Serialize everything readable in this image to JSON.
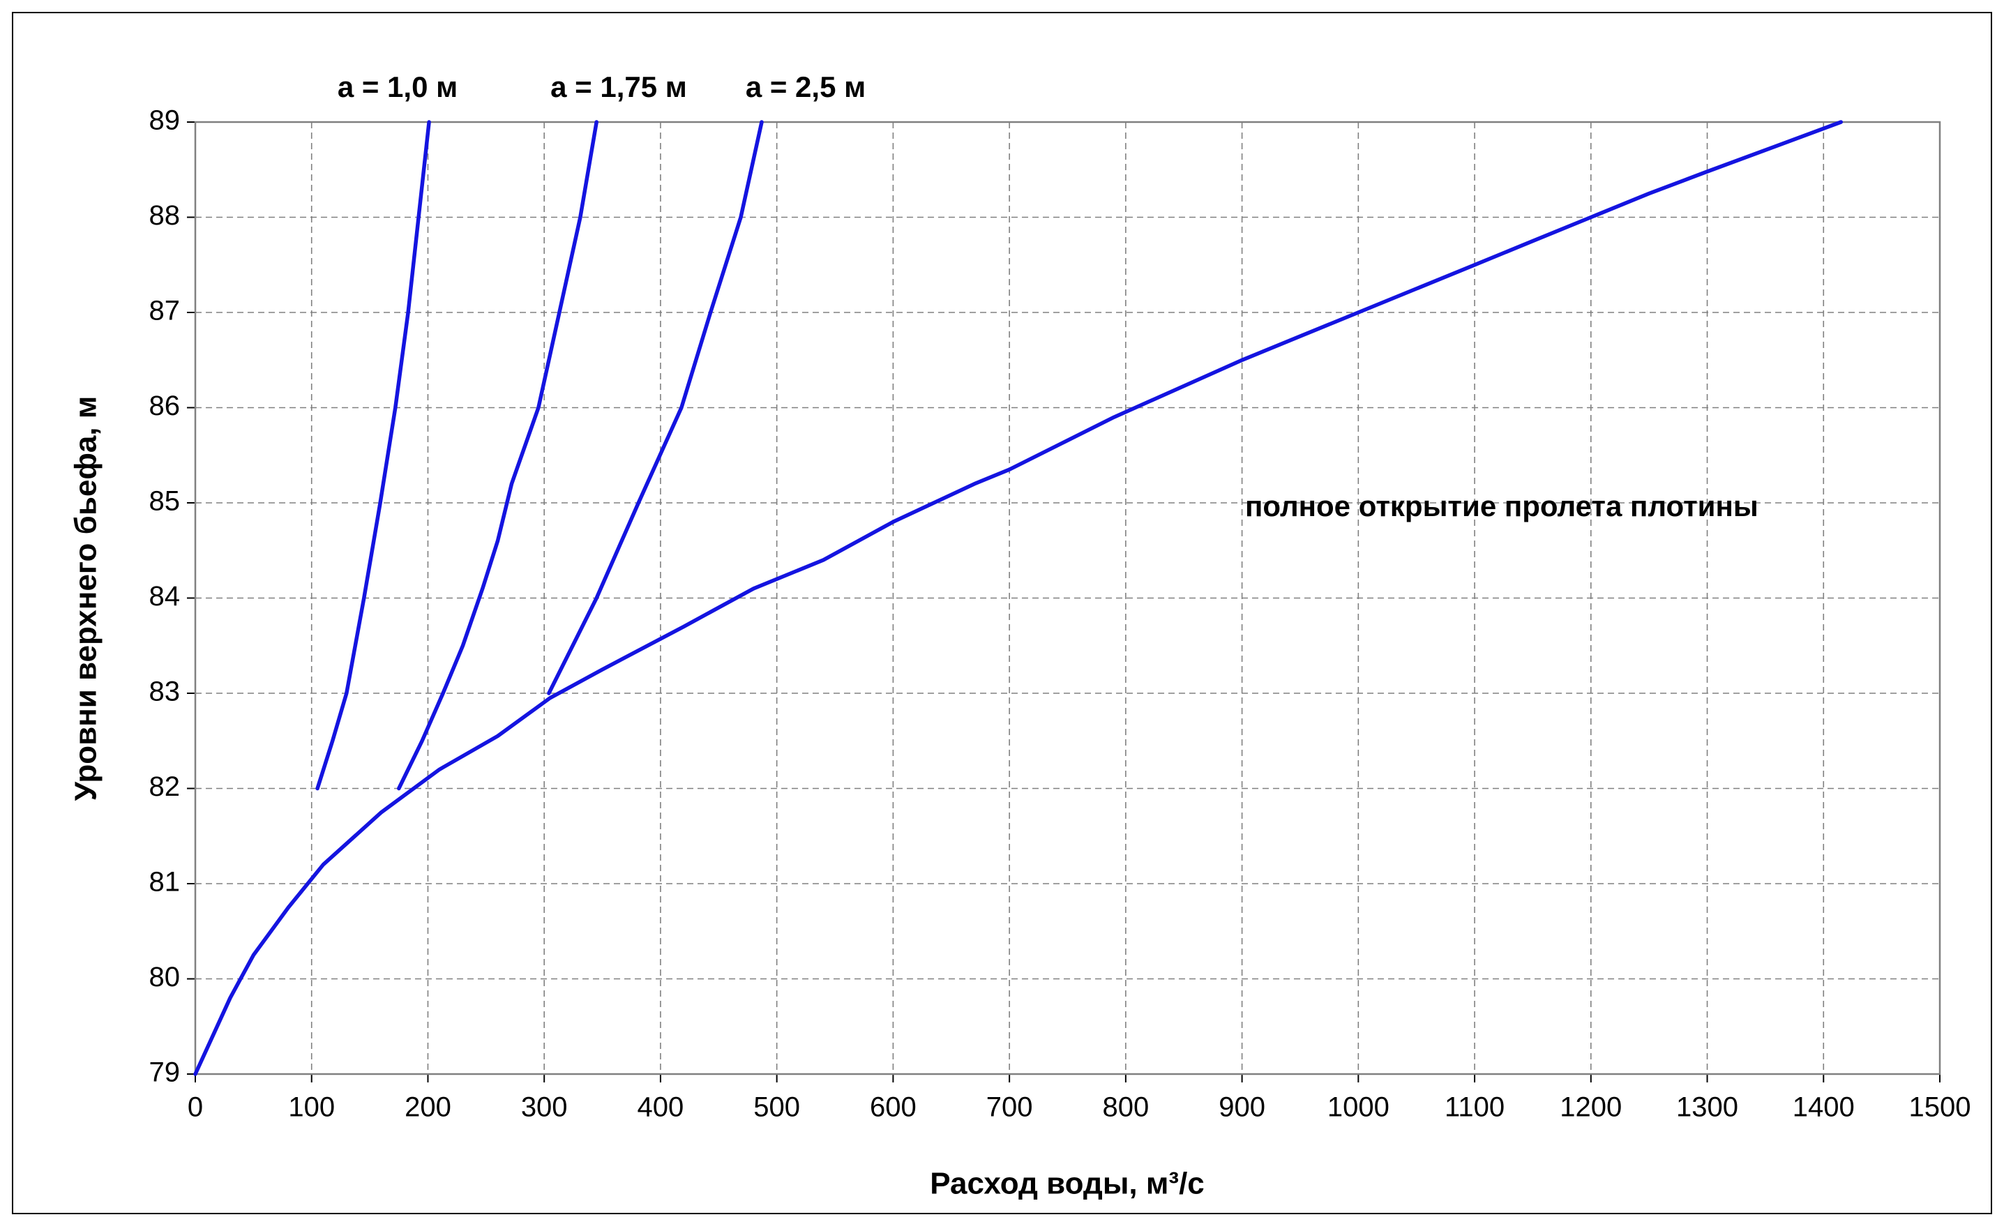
{
  "chart_data": {
    "type": "line",
    "xlabel": "Расход воды, м³/с",
    "ylabel": "Уровни верхнего бьефа, м",
    "xlim": [
      0,
      1500
    ],
    "ylim": [
      79,
      89
    ],
    "xticks": [
      0,
      100,
      200,
      300,
      400,
      500,
      600,
      700,
      800,
      900,
      1000,
      1100,
      1200,
      1300,
      1400,
      1500
    ],
    "yticks": [
      79,
      80,
      81,
      82,
      83,
      84,
      85,
      86,
      87,
      88,
      89
    ],
    "grid": true,
    "series": [
      {
        "name": "полное открытие пролета плотины",
        "color": "#1414e0",
        "x": [
          0,
          30,
          50,
          80,
          110,
          160,
          210,
          260,
          305,
          350,
          420,
          480,
          540,
          600,
          670,
          700,
          790,
          900,
          950,
          1000,
          1100,
          1150,
          1200,
          1250,
          1300,
          1415
        ],
        "values": [
          79,
          79.8,
          80.25,
          80.75,
          81.2,
          81.75,
          82.2,
          82.55,
          82.95,
          83.25,
          83.7,
          84.1,
          84.4,
          84.8,
          85.2,
          85.35,
          85.9,
          86.5,
          86.75,
          87,
          87.5,
          87.75,
          88,
          88.25,
          88.48,
          89
        ]
      },
      {
        "name": "a = 1,0 м",
        "color": "#1414e0",
        "x": [
          105,
          118,
          130,
          145,
          159,
          172,
          183,
          192,
          201
        ],
        "values": [
          82,
          82.5,
          83,
          84,
          85,
          86,
          87,
          88,
          89
        ]
      },
      {
        "name": "a = 1,75 м",
        "color": "#1414e0",
        "x": [
          175,
          195,
          213,
          230,
          247,
          260,
          272,
          295,
          313,
          331,
          345
        ],
        "values": [
          82,
          82.5,
          83,
          83.5,
          84.1,
          84.6,
          85.2,
          86,
          87,
          88,
          89
        ]
      },
      {
        "name": "a = 2,5 м",
        "color": "#1414e0",
        "x": [
          304,
          345,
          381,
          418,
          443,
          469,
          487
        ],
        "values": [
          83,
          84,
          85,
          86,
          87,
          88,
          89
        ]
      }
    ]
  }
}
